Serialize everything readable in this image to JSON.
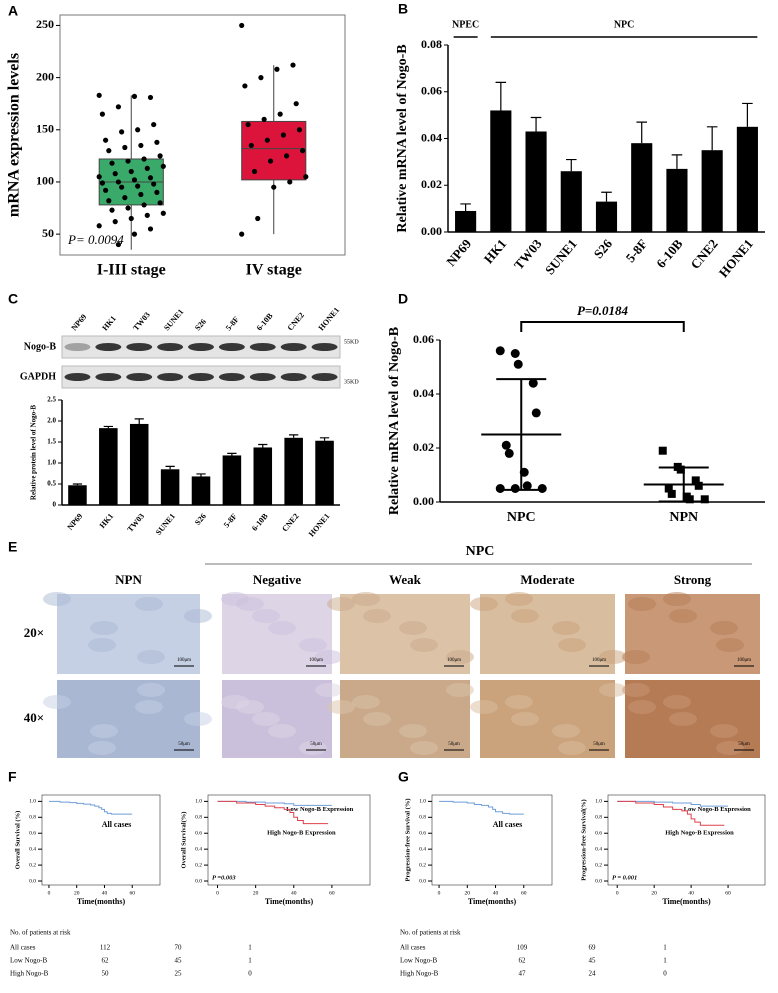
{
  "figure": {
    "letters": [
      "A",
      "B",
      "C",
      "D",
      "E",
      "F",
      "G"
    ],
    "blot": {
      "rows": [
        "Nogo-B",
        "GAPDH"
      ],
      "sizes": [
        "55KD",
        "35KD"
      ]
    },
    "ihc": {
      "group": "NPC",
      "columns": [
        "NPN",
        "Negative",
        "Weak",
        "Moderate",
        "Strong"
      ],
      "rows": [
        "20×",
        "40×"
      ],
      "scale_bars": [
        [
          "100μm",
          "100μm",
          "100μm",
          "100μm",
          "100μm"
        ],
        [
          "50μm",
          "50μm",
          "50μm",
          "50μm",
          "50μm"
        ]
      ]
    }
  },
  "chart_data": [
    {
      "type": "box",
      "ylabel": "mRNA expression levels",
      "annotation": "P= 0.0094",
      "categories": [
        "I-III stage",
        "IV stage"
      ],
      "boxes": [
        {
          "color": "#3aaa6a",
          "q1": 78,
          "median": 100,
          "q3": 122,
          "low": 35,
          "high": 183,
          "points": [
            183,
            181,
            182,
            172,
            165,
            155,
            150,
            148,
            140,
            138,
            135,
            133,
            130,
            125,
            122,
            120,
            118,
            115,
            113,
            110,
            108,
            105,
            104,
            102,
            100,
            99,
            98,
            96,
            95,
            92,
            90,
            88,
            85,
            82,
            80,
            78,
            75,
            73,
            70,
            68,
            65,
            62,
            58,
            55,
            50,
            40
          ]
        },
        {
          "color": "#dc143c",
          "q1": 102,
          "median": 132,
          "q3": 158,
          "low": 50,
          "high": 212,
          "points": [
            250,
            212,
            208,
            200,
            192,
            175,
            165,
            160,
            155,
            150,
            145,
            140,
            135,
            130,
            125,
            120,
            110,
            105,
            100,
            95,
            65,
            50
          ]
        }
      ],
      "ylim": [
        30,
        260
      ],
      "yticks": [
        50,
        100,
        150,
        200,
        250
      ]
    },
    {
      "type": "bar",
      "ylabel": "Relative mRNA level of Nogo-B",
      "annotations": [
        "NPEC",
        "NPC"
      ],
      "categories": [
        "NP69",
        "HK1",
        "TW03",
        "SUNE1",
        "S26",
        "5-8F",
        "6-10B",
        "CNE2",
        "HONE1"
      ],
      "values": [
        0.009,
        0.052,
        0.043,
        0.026,
        0.013,
        0.038,
        0.027,
        0.035,
        0.045
      ],
      "errors": [
        0.003,
        0.012,
        0.006,
        0.005,
        0.004,
        0.009,
        0.006,
        0.01,
        0.01
      ],
      "color": "#000000",
      "ylim": [
        0,
        0.08
      ],
      "yticks": [
        {
          "value": 0,
          "label": "0.00"
        },
        {
          "value": 0.02,
          "label": "0.02"
        },
        {
          "value": 0.04,
          "label": "0.04"
        },
        {
          "value": 0.06,
          "label": "0.06"
        },
        {
          "value": 0.08,
          "label": "0.08"
        }
      ]
    },
    {
      "type": "bar",
      "ylabel": "Relative protein level of Nogo-B",
      "categories": [
        "NP69",
        "HK1",
        "TW03",
        "SUNE1",
        "S26",
        "5-8F",
        "6-10B",
        "CNE2",
        "HONE1"
      ],
      "values": [
        0.47,
        1.83,
        1.93,
        0.85,
        0.68,
        1.18,
        1.37,
        1.6,
        1.53
      ],
      "errors": [
        0.03,
        0.04,
        0.12,
        0.07,
        0.06,
        0.05,
        0.07,
        0.07,
        0.07
      ],
      "color": "#000000",
      "ylim": [
        0,
        2.5
      ],
      "yticks": [
        0,
        0.5,
        {
          "value": 1,
          "label": "1.0"
        },
        1.5,
        {
          "value": 2,
          "label": "2.0"
        },
        2.5
      ]
    },
    {
      "type": "dot",
      "ylabel": "Relative mRNA level of Nogo-B",
      "annotation": "P=0.0184",
      "categories": [
        "NPC",
        "NPN"
      ],
      "markers": [
        "circle",
        "square"
      ],
      "points": [
        [
          0.056,
          0.055,
          0.051,
          0.044,
          0.033,
          0.021,
          0.018,
          0.011,
          0.006,
          0.005,
          0.005,
          0.005
        ],
        [
          0.019,
          0.013,
          0.012,
          0.008,
          0.006,
          0.005,
          0.003,
          0.002,
          0.001,
          0.001
        ]
      ],
      "means": [
        0.025,
        0.0065
      ],
      "sd": [
        0.0205,
        0.0063
      ],
      "ylim": [
        0,
        0.06
      ],
      "yticks": [
        {
          "value": 0,
          "label": "0.00"
        },
        {
          "value": 0.02,
          "label": "0.02"
        },
        {
          "value": 0.04,
          "label": "0.04"
        },
        {
          "value": 0.06,
          "label": "0.06"
        }
      ]
    },
    {
      "type": "km",
      "ylabel": "Overall Survival (%)",
      "xlabel": "Time(months)",
      "series": [
        {
          "name": "All cases",
          "color": "#6f9fd8",
          "x": [
            0,
            8,
            15,
            20,
            25,
            30,
            33,
            36,
            38,
            40,
            42,
            45,
            50,
            55,
            60
          ],
          "y": [
            1,
            0.99,
            0.985,
            0.975,
            0.965,
            0.955,
            0.94,
            0.92,
            0.9,
            0.87,
            0.85,
            0.84,
            0.84,
            0.84,
            0.84
          ]
        }
      ],
      "risk_title": "No. of patients at risk",
      "risk_rows": [
        {
          "label": "All cases",
          "counts": [
            112,
            70,
            1
          ]
        },
        {
          "label": "Low Nogo-B",
          "counts": [
            62,
            45,
            1
          ]
        },
        {
          "label": "High Nogo-B",
          "counts": [
            50,
            25,
            0
          ]
        }
      ],
      "xlim": [
        -5,
        80
      ],
      "xticks": [
        0,
        20,
        40,
        60
      ],
      "ylim": [
        -0.05,
        1.08
      ],
      "yticks": [
        {
          "value": 0,
          "label": "0.0"
        },
        0.2,
        0.4,
        0.6,
        0.8,
        {
          "value": 1,
          "label": "1.0"
        }
      ]
    },
    {
      "type": "km",
      "ylabel": "Overall Survival(%)",
      "xlabel": "Time(months)",
      "annotation": "P =0.003",
      "series": [
        {
          "name": "Low Nogo-B Expression",
          "color": "#6f9fd8",
          "x": [
            0,
            15,
            25,
            35,
            40,
            45,
            50,
            55,
            60
          ],
          "y": [
            1,
            0.99,
            0.98,
            0.97,
            0.95,
            0.95,
            0.95,
            0.95,
            0.95
          ]
        },
        {
          "name": "High Nogo-B Expression",
          "color": "#e0404a",
          "x": [
            0,
            10,
            20,
            25,
            30,
            35,
            38,
            40,
            42,
            45,
            50,
            55,
            58
          ],
          "y": [
            1,
            0.98,
            0.96,
            0.94,
            0.92,
            0.9,
            0.86,
            0.8,
            0.76,
            0.72,
            0.72,
            0.72,
            0.72
          ]
        }
      ],
      "xlim": [
        -5,
        80
      ],
      "xticks": [
        0,
        20,
        40,
        60
      ],
      "ylim": [
        -0.05,
        1.08
      ],
      "yticks": [
        {
          "value": 0,
          "label": "0.0"
        },
        0.2,
        0.4,
        0.6,
        0.8,
        {
          "value": 1,
          "label": "1.0"
        }
      ]
    },
    {
      "type": "km",
      "ylabel": "Progression-free Survival (%)",
      "xlabel": "Time(months)",
      "series": [
        {
          "name": "All cases",
          "color": "#6f9fd8",
          "x": [
            0,
            10,
            20,
            25,
            30,
            35,
            38,
            40,
            45,
            50,
            55,
            60
          ],
          "y": [
            1,
            0.99,
            0.98,
            0.96,
            0.95,
            0.93,
            0.9,
            0.87,
            0.85,
            0.84,
            0.84,
            0.84
          ]
        }
      ],
      "risk_title": "No. of patients at risk",
      "risk_rows": [
        {
          "label": "All cases",
          "counts": [
            109,
            69,
            1
          ]
        },
        {
          "label": "Low Nogo-B",
          "counts": [
            62,
            45,
            1
          ]
        },
        {
          "label": "High Nogo-B",
          "counts": [
            47,
            24,
            0
          ]
        }
      ],
      "xlim": [
        -5,
        80
      ],
      "xticks": [
        0,
        20,
        40,
        60
      ],
      "ylim": [
        -0.05,
        1.08
      ],
      "yticks": [
        {
          "value": 0,
          "label": "0.0"
        },
        0.2,
        0.4,
        0.6,
        0.8,
        {
          "value": 1,
          "label": "1.0"
        }
      ]
    },
    {
      "type": "km",
      "ylabel": "Progression-free Survival(%)",
      "xlabel": "Time(months)",
      "annotation": "P = 0.001",
      "series": [
        {
          "name": "Low Nogo-B Expression",
          "color": "#6f9fd8",
          "x": [
            0,
            20,
            30,
            40,
            45,
            50,
            55,
            60
          ],
          "y": [
            1,
            0.99,
            0.98,
            0.96,
            0.94,
            0.94,
            0.94,
            0.94
          ]
        },
        {
          "name": "High Nogo-B Expression",
          "color": "#e0404a",
          "x": [
            0,
            10,
            20,
            25,
            30,
            35,
            38,
            40,
            42,
            45,
            50,
            58
          ],
          "y": [
            1,
            0.98,
            0.96,
            0.93,
            0.9,
            0.88,
            0.84,
            0.78,
            0.74,
            0.7,
            0.7,
            0.7
          ]
        }
      ],
      "xlim": [
        -5,
        80
      ],
      "xticks": [
        0,
        20,
        40,
        60
      ],
      "ylim": [
        -0.05,
        1.08
      ],
      "yticks": [
        {
          "value": 0,
          "label": "0.0"
        },
        0.2,
        0.4,
        0.6,
        0.8,
        {
          "value": 1,
          "label": "1.0"
        }
      ]
    }
  ]
}
